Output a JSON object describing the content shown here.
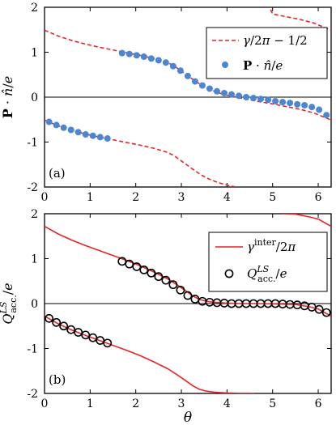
{
  "chart_data": [
    {
      "type": "scatter",
      "panel_label": "(a)",
      "ylabel": "P · n̂/e",
      "xlabel": "",
      "xlim": [
        0,
        6.2832
      ],
      "ylim": [
        -2,
        2
      ],
      "xticks": [
        "0",
        "1",
        "2",
        "3",
        "4",
        "5",
        "6"
      ],
      "yticks": [
        "-2",
        "-1",
        "0",
        "1",
        "2"
      ],
      "grid": false,
      "legend_position": "top-right",
      "zero_line": true,
      "series": [
        {
          "name": "γ/2π − 1/2",
          "style": "dashed-line",
          "color": "#e8242a",
          "branches": [
            {
              "x": [
                0,
                0.3,
                0.6,
                0.9,
                1.2,
                1.5,
                1.8,
                2.1,
                2.4,
                2.7,
                2.85,
                3.0,
                3.15,
                3.3,
                3.45,
                3.6,
                3.75,
                3.9,
                4.05,
                4.2,
                4.4,
                4.7,
                5.0,
                5.3,
                5.6,
                5.9,
                6.2832
              ],
              "y": [
                1.49,
                1.36,
                1.26,
                1.18,
                1.11,
                1.05,
                0.99,
                0.93,
                0.86,
                0.77,
                0.69,
                0.58,
                0.47,
                0.36,
                0.26,
                0.18,
                0.12,
                0.07,
                0.03,
                0.0,
                -0.04,
                -0.1,
                -0.15,
                -0.21,
                -0.27,
                -0.35,
                -0.51
              ]
            },
            {
              "x": [
                0,
                0.3,
                0.6,
                0.9,
                1.2,
                1.5,
                1.8,
                2.1,
                2.4,
                2.7,
                2.85,
                3.0,
                3.15,
                3.3,
                3.45,
                3.6,
                3.75,
                3.9,
                4.05,
                4.2,
                4.4,
                4.6
              ],
              "y": [
                -0.51,
                -0.64,
                -0.74,
                -0.82,
                -0.89,
                -0.95,
                -1.01,
                -1.07,
                -1.14,
                -1.23,
                -1.31,
                -1.42,
                -1.53,
                -1.64,
                -1.74,
                -1.82,
                -1.88,
                -1.93,
                -1.97,
                -2.0,
                -2.04,
                -2.07
              ]
            },
            {
              "x": [
                4.9,
                5.0,
                5.3,
                5.6,
                5.9,
                6.2832
              ],
              "y": [
                2.08,
                1.85,
                1.79,
                1.73,
                1.65,
                1.49
              ]
            }
          ]
        },
        {
          "name": "P · n̂/e",
          "style": "markers",
          "color": "#4a86d4",
          "x": [
            0.1,
            0.26,
            0.42,
            0.58,
            0.74,
            0.9,
            1.06,
            1.22,
            1.38,
            1.7,
            1.86,
            2.02,
            2.18,
            2.34,
            2.5,
            2.66,
            2.82,
            2.98,
            3.14,
            3.3,
            3.46,
            3.62,
            3.78,
            3.94,
            4.1,
            4.26,
            4.42,
            4.58,
            4.74,
            4.9,
            5.06,
            5.22,
            5.38,
            5.54,
            5.7,
            5.86,
            6.02,
            6.18
          ],
          "y": [
            -0.55,
            -0.62,
            -0.68,
            -0.73,
            -0.78,
            -0.83,
            -0.86,
            -0.89,
            -0.92,
            0.98,
            0.96,
            0.93,
            0.9,
            0.86,
            0.82,
            0.77,
            0.69,
            0.59,
            0.47,
            0.35,
            0.26,
            0.19,
            0.13,
            0.09,
            0.06,
            0.03,
            0.0,
            -0.02,
            -0.04,
            -0.06,
            -0.09,
            -0.11,
            -0.13,
            -0.16,
            -0.18,
            -0.22,
            -0.28,
            -0.4
          ]
        }
      ]
    },
    {
      "type": "scatter",
      "panel_label": "(b)",
      "ylabel": "Q^LS_acc./e",
      "xlabel": "θ",
      "xlim": [
        0,
        6.2832
      ],
      "ylim": [
        -2,
        2
      ],
      "xticks": [
        "0",
        "1",
        "2",
        "3",
        "4",
        "5",
        "6"
      ],
      "yticks": [
        "-2",
        "-1",
        "0",
        "1",
        "2"
      ],
      "grid": false,
      "legend_position": "top-right",
      "zero_line": true,
      "series": [
        {
          "name": "γ^inter/2π",
          "style": "solid-line",
          "color": "#e8242a",
          "branches": [
            {
              "x": [
                0,
                0.3,
                0.6,
                0.9,
                1.2,
                1.5,
                1.8,
                2.1,
                2.4,
                2.7,
                2.9,
                3.1,
                3.25,
                3.4,
                3.55,
                3.7,
                3.85,
                4.0,
                4.3,
                4.7,
                5.1,
                5.5,
                5.8,
                6.0,
                6.2832
              ],
              "y": [
                1.72,
                1.55,
                1.41,
                1.29,
                1.18,
                1.07,
                0.96,
                0.84,
                0.7,
                0.55,
                0.42,
                0.28,
                0.17,
                0.09,
                0.05,
                0.03,
                0.02,
                0.01,
                0.0,
                0.0,
                -0.01,
                -0.02,
                -0.07,
                -0.12,
                -0.28
              ]
            },
            {
              "x": [
                0,
                0.3,
                0.6,
                0.9,
                1.2,
                1.5,
                1.8,
                2.1,
                2.4,
                2.7,
                2.9,
                3.1,
                3.25,
                3.4,
                3.55,
                3.7,
                3.85,
                4.0,
                4.3,
                4.6
              ],
              "y": [
                -0.28,
                -0.45,
                -0.59,
                -0.71,
                -0.82,
                -0.93,
                -1.04,
                -1.16,
                -1.3,
                -1.45,
                -1.58,
                -1.72,
                -1.83,
                -1.91,
                -1.95,
                -1.97,
                -1.98,
                -1.99,
                -2.0,
                -2.0
              ]
            },
            {
              "x": [
                5.2,
                5.5,
                5.8,
                6.0,
                6.2832
              ],
              "y": [
                2.0,
                1.99,
                1.93,
                1.88,
                1.72
              ]
            }
          ]
        },
        {
          "name": "Q^LS_acc./e",
          "style": "open-markers",
          "color": "#000000",
          "x": [
            0.1,
            0.26,
            0.42,
            0.58,
            0.74,
            0.9,
            1.06,
            1.22,
            1.38,
            1.7,
            1.86,
            2.02,
            2.18,
            2.34,
            2.5,
            2.66,
            2.82,
            2.98,
            3.14,
            3.3,
            3.46,
            3.62,
            3.78,
            3.94,
            4.1,
            4.26,
            4.42,
            4.58,
            4.74,
            4.9,
            5.06,
            5.22,
            5.38,
            5.54,
            5.7,
            5.86,
            6.02,
            6.18
          ],
          "y": [
            -0.33,
            -0.42,
            -0.5,
            -0.58,
            -0.64,
            -0.7,
            -0.76,
            -0.82,
            -0.88,
            0.94,
            0.88,
            0.82,
            0.75,
            0.68,
            0.6,
            0.52,
            0.42,
            0.3,
            0.18,
            0.1,
            0.05,
            0.03,
            0.02,
            0.01,
            0.0,
            0.0,
            0.0,
            0.0,
            0.0,
            0.0,
            0.0,
            -0.01,
            -0.02,
            -0.03,
            -0.05,
            -0.08,
            -0.13,
            -0.2
          ]
        }
      ]
    }
  ]
}
